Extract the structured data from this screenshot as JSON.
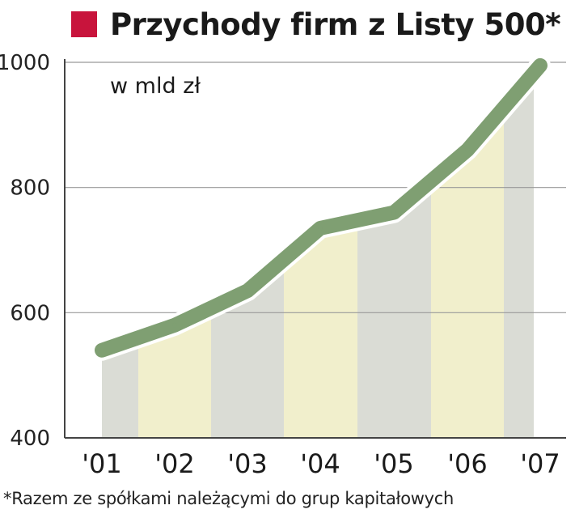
{
  "chart_data": {
    "type": "line",
    "title": "Przychody firm z Listy 500*",
    "unit_label": "w mld zł",
    "categories": [
      "'01",
      "'02",
      "'03",
      "'04",
      "'05",
      "'06",
      "'07"
    ],
    "values": [
      540,
      580,
      635,
      735,
      760,
      860,
      995
    ],
    "ylim": [
      400,
      1000
    ],
    "yticks": [
      400,
      600,
      800,
      1000
    ],
    "grid": true,
    "footnote": "*Razem ze spółkami należącymi do grup kapitałowych"
  },
  "colors": {
    "title_square": "#c8143c",
    "line": "#7f9f72",
    "band_gray": "#dadcd5",
    "band_yellow": "#f1efcc",
    "grid": "#999999",
    "axis": "#444444"
  }
}
